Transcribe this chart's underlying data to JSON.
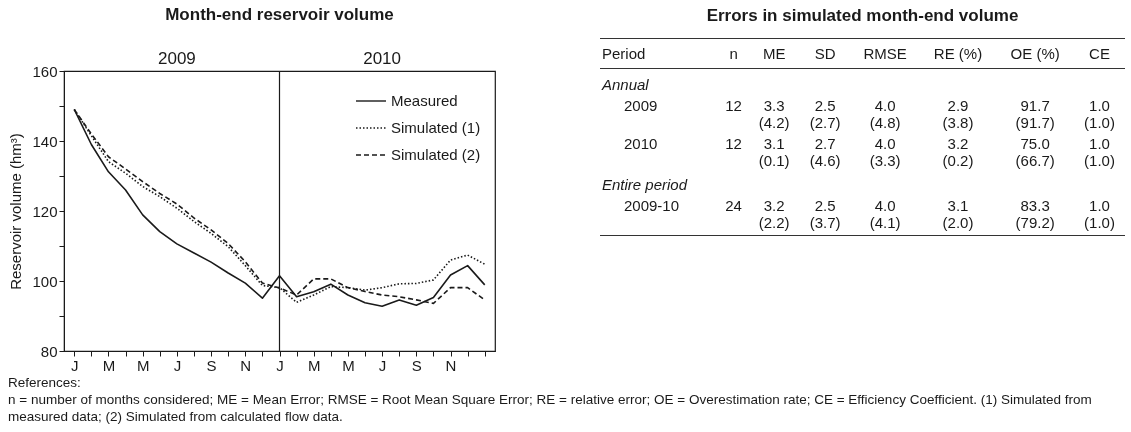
{
  "chart_data": [
    {
      "type": "line",
      "title": "Month-end reservoir volume",
      "ylabel": "Reservoir volume  (hm³)",
      "categories": [
        "J",
        null,
        "M",
        null,
        "M",
        null,
        "J",
        null,
        "S",
        null,
        "N",
        null,
        "J",
        null,
        "M",
        null,
        "M",
        null,
        "J",
        null,
        "S",
        null,
        "N",
        null,
        null
      ],
      "series": [
        {
          "name": "Measured",
          "color": "#1a1a1a",
          "line_style": "solid",
          "values": [
            149,
            139,
            131.2,
            126,
            118.9,
            114.1,
            110.6,
            108,
            105.4,
            102.3,
            99.4,
            95.1,
            101.5,
            95.5,
            96.9,
            99.1,
            96,
            93.8,
            92.8,
            94.6,
            93.1,
            95.3,
            101.7,
            104.4,
            98.9
          ]
        },
        {
          "name": "Simulated (1)",
          "color": "#1a1a1a",
          "line_style": "dotted",
          "values": [
            149,
            141.5,
            134.1,
            130.8,
            127,
            124.1,
            120.8,
            117,
            113.6,
            109.8,
            104.4,
            98.7,
            98.1,
            93.9,
            96,
            98.4,
            98.1,
            97.4,
            98.1,
            99.2,
            99.3,
            100.3,
            106,
            107.4,
            104.8
          ]
        },
        {
          "name": "Simulated (2)",
          "color": "#1a1a1a",
          "line_style": "dashed",
          "values": [
            149,
            142,
            135.5,
            132,
            128.4,
            125,
            122,
            118,
            114.6,
            110.7,
            105.5,
            99.4,
            98,
            96,
            100.6,
            100.6,
            98.1,
            97,
            96,
            95.5,
            94.6,
            93.6,
            98.1,
            98.1,
            94.6
          ]
        }
      ],
      "ylim": [
        80,
        160
      ],
      "yticks": [
        80,
        {
          "value": 90,
          "label": null
        },
        100,
        {
          "value": 110,
          "label": null
        },
        120,
        {
          "value": 130,
          "label": null
        },
        140,
        {
          "value": 150,
          "label": null
        },
        160
      ],
      "legend": "top right",
      "annotations": [
        "2009",
        "2010",
        "References:",
        "n = number of months considered; ME = Mean Error; RMSE = Root Mean Square Error; RE = relative error; OE = Overestimation rate; CE = Efficiency Coefficient. (1) Simulated from measured data; (2) Simulated from calculated flow data."
      ]
    },
    {
      "type": "other",
      "title": "Errors in simulated month-end volume",
      "annotations": [
        "Period",
        "n",
        "ME",
        "SD",
        "RMSE",
        "RE (%)",
        "OE (%)",
        "CE",
        "Annual",
        "2009",
        "12",
        "3.3",
        "2.5",
        "4.0",
        "2.9",
        "91.7",
        "1.0",
        "(4.2)",
        "(2.7)",
        "(4.8)",
        "(3.8)",
        "(91.7)",
        "(1.0)",
        "2010",
        "12",
        "3.1",
        "2.7",
        "4.0",
        "3.2",
        "75.0",
        "1.0",
        "(0.1)",
        "(4.6)",
        "(3.3)",
        "(0.2)",
        "(66.7)",
        "(1.0)",
        "Entire period",
        "2009-10",
        "24",
        "3.2",
        "2.5",
        "4.0",
        "3.1",
        "83.3",
        "1.0",
        "(2.2)",
        "(3.7)",
        "(4.1)",
        "(2.0)",
        "(79.2)",
        "(1.0)"
      ]
    }
  ]
}
